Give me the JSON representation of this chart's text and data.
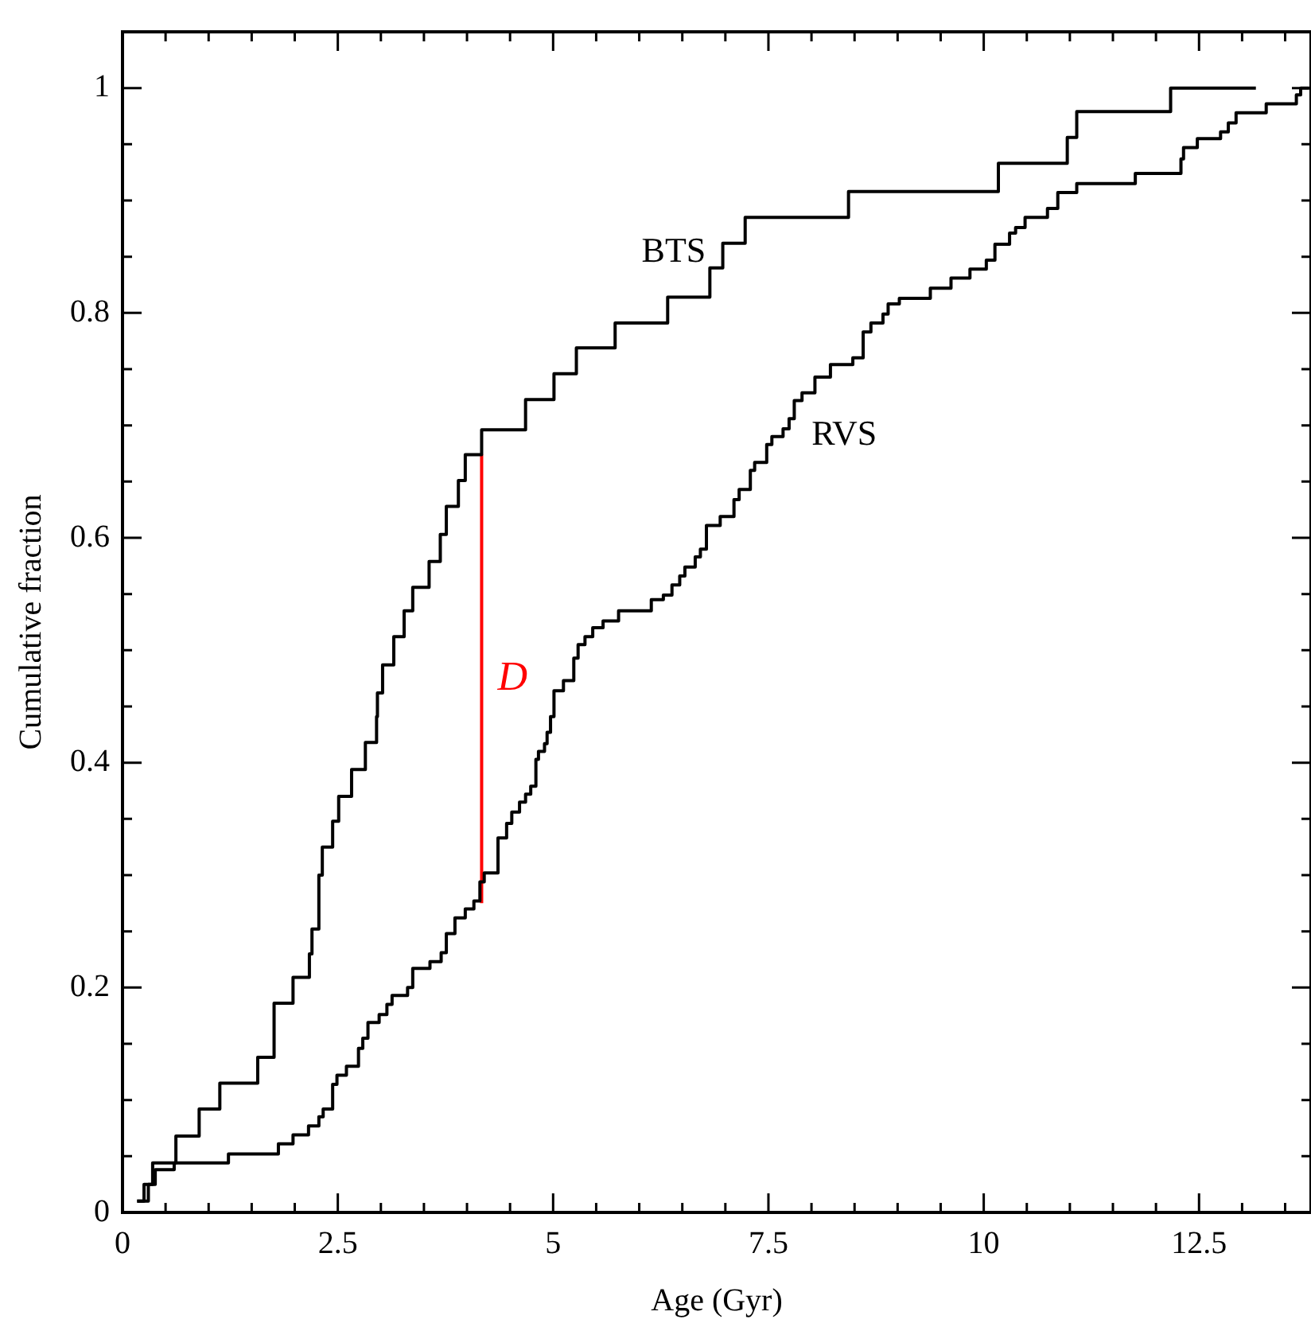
{
  "chart_data": {
    "type": "step",
    "xlabel": "Age (Gyr)",
    "ylabel": "Cumulative fraction",
    "xlim": [
      0,
      13.8
    ],
    "ylim": [
      0,
      1.05
    ],
    "xticks": [
      0,
      {
        "value": 0.5,
        "label": null
      },
      {
        "value": 1,
        "label": null
      },
      {
        "value": 1.5,
        "label": null
      },
      {
        "value": 2,
        "label": null
      },
      2.5,
      {
        "value": 3,
        "label": null
      },
      {
        "value": 3.5,
        "label": null
      },
      {
        "value": 4,
        "label": null
      },
      {
        "value": 4.5,
        "label": null
      },
      5,
      {
        "value": 5.5,
        "label": null
      },
      {
        "value": 6,
        "label": null
      },
      {
        "value": 6.5,
        "label": null
      },
      {
        "value": 7,
        "label": null
      },
      7.5,
      {
        "value": 8,
        "label": null
      },
      {
        "value": 8.5,
        "label": null
      },
      {
        "value": 9,
        "label": null
      },
      {
        "value": 9.5,
        "label": null
      },
      10,
      {
        "value": 10.5,
        "label": null
      },
      {
        "value": 11,
        "label": null
      },
      {
        "value": 11.5,
        "label": null
      },
      {
        "value": 12,
        "label": null
      },
      12.5,
      {
        "value": 13,
        "label": null
      },
      {
        "value": 13.5,
        "label": null
      }
    ],
    "yticks": [
      0,
      {
        "value": 0.05,
        "label": null
      },
      {
        "value": 0.1,
        "label": null
      },
      {
        "value": 0.15,
        "label": null
      },
      0.2,
      {
        "value": 0.25,
        "label": null
      },
      {
        "value": 0.3,
        "label": null
      },
      {
        "value": 0.35,
        "label": null
      },
      0.4,
      {
        "value": 0.45,
        "label": null
      },
      {
        "value": 0.5,
        "label": null
      },
      {
        "value": 0.55,
        "label": null
      },
      0.6,
      {
        "value": 0.65,
        "label": null
      },
      {
        "value": 0.7,
        "label": null
      },
      {
        "value": 0.75,
        "label": null
      },
      0.8,
      {
        "value": 0.85,
        "label": null
      },
      {
        "value": 0.9,
        "label": null
      },
      {
        "value": 0.95,
        "label": null
      },
      1
    ],
    "series": [
      {
        "name": "BTS",
        "color": "#000000",
        "x": [
          0.17,
          0.25,
          0.35,
          0.62,
          0.89,
          1.13,
          1.57,
          1.76,
          1.98,
          2.17,
          2.2,
          2.28,
          2.32,
          2.44,
          2.51,
          2.66,
          2.82,
          2.95,
          2.96,
          3.02,
          3.15,
          3.27,
          3.37,
          3.56,
          3.69,
          3.76,
          3.9,
          3.98,
          4.17,
          4.68,
          5.01,
          5.27,
          5.72,
          6.33,
          6.82,
          6.97,
          7.23,
          8.43,
          10.17,
          10.97,
          11.08,
          12.17,
          13.16
        ],
        "values": [
          0.01,
          0.025,
          0.044,
          0.068,
          0.092,
          0.115,
          0.138,
          0.186,
          0.209,
          0.23,
          0.252,
          0.3,
          0.325,
          0.348,
          0.37,
          0.394,
          0.418,
          0.441,
          0.462,
          0.487,
          0.512,
          0.535,
          0.556,
          0.579,
          0.603,
          0.628,
          0.651,
          0.674,
          0.696,
          0.723,
          0.746,
          0.769,
          0.791,
          0.814,
          0.84,
          0.862,
          0.885,
          0.908,
          0.933,
          0.956,
          0.979,
          1.0,
          1.0
        ]
      },
      {
        "name": "RVS",
        "color": "#000000",
        "x": [
          0.17,
          0.3,
          0.38,
          0.6,
          1.23,
          1.81,
          1.98,
          2.16,
          2.28,
          2.33,
          2.44,
          2.49,
          2.6,
          2.74,
          2.79,
          2.85,
          2.98,
          3.07,
          3.13,
          3.31,
          3.37,
          3.57,
          3.7,
          3.76,
          3.86,
          3.98,
          4.08,
          4.15,
          4.2,
          4.36,
          4.46,
          4.52,
          4.61,
          4.68,
          4.74,
          4.8,
          4.83,
          4.9,
          4.93,
          4.97,
          5.01,
          5.12,
          5.24,
          5.29,
          5.37,
          5.46,
          5.58,
          5.76,
          6.14,
          6.28,
          6.38,
          6.47,
          6.53,
          6.65,
          6.71,
          6.78,
          6.94,
          7.1,
          7.16,
          7.29,
          7.34,
          7.48,
          7.54,
          7.67,
          7.74,
          7.8,
          7.89,
          8.04,
          8.22,
          8.48,
          8.6,
          8.69,
          8.83,
          8.89,
          9.02,
          9.38,
          9.62,
          9.84,
          10.03,
          10.13,
          10.3,
          10.37,
          10.48,
          10.74,
          10.86,
          11.08,
          11.76,
          12.29,
          12.32,
          12.48,
          12.75,
          12.84,
          12.93,
          13.28,
          13.63,
          13.68,
          13.78
        ],
        "values": [
          0.01,
          0.025,
          0.038,
          0.044,
          0.052,
          0.061,
          0.069,
          0.077,
          0.085,
          0.092,
          0.114,
          0.122,
          0.13,
          0.146,
          0.155,
          0.169,
          0.176,
          0.185,
          0.193,
          0.2,
          0.217,
          0.223,
          0.231,
          0.248,
          0.262,
          0.27,
          0.277,
          0.294,
          0.302,
          0.333,
          0.346,
          0.356,
          0.365,
          0.372,
          0.379,
          0.403,
          0.41,
          0.417,
          0.427,
          0.441,
          0.464,
          0.473,
          0.493,
          0.505,
          0.512,
          0.52,
          0.526,
          0.535,
          0.545,
          0.549,
          0.558,
          0.566,
          0.574,
          0.583,
          0.59,
          0.611,
          0.619,
          0.634,
          0.643,
          0.66,
          0.667,
          0.683,
          0.69,
          0.697,
          0.706,
          0.722,
          0.729,
          0.743,
          0.754,
          0.76,
          0.783,
          0.791,
          0.799,
          0.808,
          0.813,
          0.822,
          0.831,
          0.839,
          0.847,
          0.861,
          0.871,
          0.876,
          0.885,
          0.893,
          0.907,
          0.915,
          0.924,
          0.937,
          0.947,
          0.955,
          0.961,
          0.969,
          0.978,
          0.986,
          0.994,
          1.0,
          1.0
        ]
      },
      {
        "type": "line",
        "name": "D",
        "color": "#ff0000",
        "x": [
          4.17,
          4.17
        ],
        "values": [
          0.275,
          0.674
        ]
      }
    ]
  }
}
